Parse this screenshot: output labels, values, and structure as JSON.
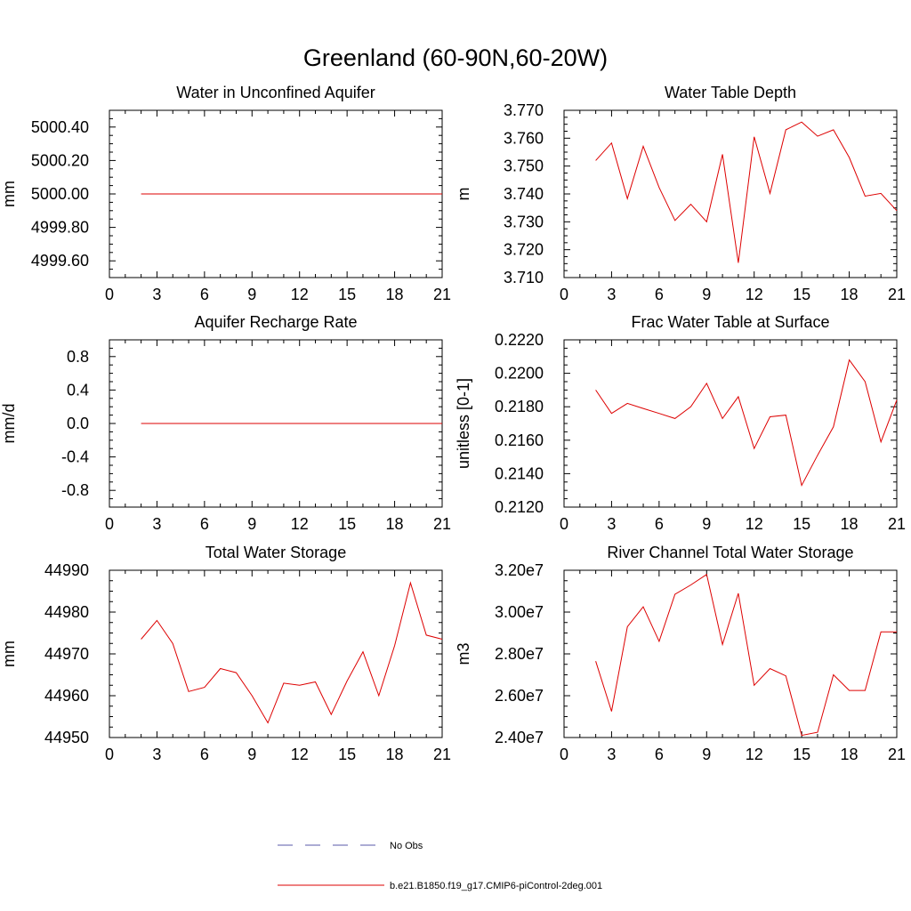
{
  "figure": {
    "title": "Greenland (60-90N,60-20W)"
  },
  "legend": {
    "entries": [
      {
        "label": "No Obs",
        "color": "#5a5aa8",
        "dash": true
      },
      {
        "label": "b.e21.B1850.f19_g17.CMIP6-piControl-2deg.001",
        "color": "#dd0000",
        "dash": false
      }
    ]
  },
  "chart_data": [
    {
      "type": "line",
      "title": "Water in Unconfined Aquifer",
      "ylabel": "mm",
      "xlim": [
        0,
        21
      ],
      "ylim": [
        4999.5,
        5000.5
      ],
      "xticks": [
        0,
        3,
        6,
        9,
        12,
        15,
        18,
        21
      ],
      "yticks": [
        4999.6,
        4999.8,
        5000.0,
        5000.2,
        5000.4
      ],
      "ytick_labels": [
        "4999.60",
        "4999.80",
        "5000.00",
        "5000.20",
        "5000.40"
      ],
      "series": [
        {
          "color": "#dd0000",
          "x": [
            2,
            3,
            4,
            5,
            6,
            7,
            8,
            9,
            10,
            11,
            12,
            13,
            14,
            15,
            16,
            17,
            18,
            19,
            20,
            21
          ],
          "y": [
            5000,
            5000,
            5000,
            5000,
            5000,
            5000,
            5000,
            5000,
            5000,
            5000,
            5000,
            5000,
            5000,
            5000,
            5000,
            5000,
            5000,
            5000,
            5000,
            5000
          ]
        }
      ]
    },
    {
      "type": "line",
      "title": "Water Table Depth",
      "ylabel": "m",
      "xlim": [
        0,
        21
      ],
      "ylim": [
        3.71,
        3.77
      ],
      "xticks": [
        0,
        3,
        6,
        9,
        12,
        15,
        18,
        21
      ],
      "yticks": [
        3.71,
        3.72,
        3.73,
        3.74,
        3.75,
        3.76,
        3.77
      ],
      "ytick_labels": [
        "3.710",
        "3.720",
        "3.730",
        "3.740",
        "3.750",
        "3.760",
        "3.770"
      ],
      "series": [
        {
          "color": "#dd0000",
          "x": [
            2,
            3,
            4,
            5,
            6,
            7,
            8,
            9,
            10,
            11,
            12,
            13,
            14,
            15,
            16,
            17,
            18,
            19,
            20,
            21
          ],
          "y": [
            3.752,
            3.7583,
            3.7383,
            3.7571,
            3.7423,
            3.7305,
            3.7363,
            3.73,
            3.7542,
            3.7153,
            3.7605,
            3.7402,
            3.763,
            3.7658,
            3.7607,
            3.763,
            3.7531,
            3.7392,
            3.7402,
            3.734
          ]
        }
      ]
    },
    {
      "type": "line",
      "title": "Aquifer Recharge Rate",
      "ylabel": "mm/d",
      "xlim": [
        0,
        21
      ],
      "ylim": [
        -1.0,
        1.0
      ],
      "xticks": [
        0,
        3,
        6,
        9,
        12,
        15,
        18,
        21
      ],
      "yticks": [
        -0.8,
        -0.4,
        0.0,
        0.4,
        0.8
      ],
      "ytick_labels": [
        "-0.8",
        "-0.4",
        "0.0",
        "0.4",
        "0.8"
      ],
      "series": [
        {
          "color": "#dd0000",
          "x": [
            2,
            3,
            4,
            5,
            6,
            7,
            8,
            9,
            10,
            11,
            12,
            13,
            14,
            15,
            16,
            17,
            18,
            19,
            20,
            21
          ],
          "y": [
            0,
            0,
            0,
            0,
            0,
            0,
            0,
            0,
            0,
            0,
            0,
            0,
            0,
            0,
            0,
            0,
            0,
            0,
            0,
            0
          ]
        }
      ]
    },
    {
      "type": "line",
      "title": "Frac Water Table at Surface",
      "ylabel": "unitless [0-1]",
      "xlim": [
        0,
        21
      ],
      "ylim": [
        0.212,
        0.222
      ],
      "xticks": [
        0,
        3,
        6,
        9,
        12,
        15,
        18,
        21
      ],
      "yticks": [
        0.212,
        0.214,
        0.216,
        0.218,
        0.22,
        0.222
      ],
      "ytick_labels": [
        "0.2120",
        "0.2140",
        "0.2160",
        "0.2180",
        "0.2200",
        "0.2220"
      ],
      "series": [
        {
          "color": "#dd0000",
          "x": [
            2,
            3,
            4,
            5,
            6,
            7,
            8,
            9,
            10,
            11,
            12,
            13,
            14,
            15,
            16,
            17,
            18,
            19,
            20,
            21
          ],
          "y": [
            0.219,
            0.2176,
            0.2182,
            0.2179,
            0.2176,
            0.2173,
            0.218,
            0.2194,
            0.2173,
            0.2186,
            0.2155,
            0.2174,
            0.2175,
            0.2133,
            0.2151,
            0.2168,
            0.2208,
            0.2195,
            0.2159,
            0.2184
          ]
        }
      ]
    },
    {
      "type": "line",
      "title": "Total Water Storage",
      "ylabel": "mm",
      "xlim": [
        0,
        21
      ],
      "ylim": [
        44950,
        44990
      ],
      "xticks": [
        0,
        3,
        6,
        9,
        12,
        15,
        18,
        21
      ],
      "yticks": [
        44950,
        44960,
        44970,
        44980,
        44990
      ],
      "ytick_labels": [
        "44950",
        "44960",
        "44970",
        "44980",
        "44990"
      ],
      "series": [
        {
          "color": "#dd0000",
          "x": [
            2,
            3,
            4,
            5,
            6,
            7,
            8,
            9,
            10,
            11,
            12,
            13,
            14,
            15,
            16,
            17,
            18,
            19,
            20,
            21
          ],
          "y": [
            44973.5,
            44978,
            44972.5,
            44961,
            44962,
            44966.5,
            44965.5,
            44960,
            44953.5,
            44963,
            44962.5,
            44963.3,
            44955.5,
            44963.5,
            44970.5,
            44960,
            44972,
            44987,
            44974.5,
            44973.5
          ]
        }
      ]
    },
    {
      "type": "line",
      "title": "River Channel Total Water Storage",
      "ylabel": "m3",
      "xlim": [
        0,
        21
      ],
      "ylim": [
        24000000,
        32000000
      ],
      "xticks": [
        0,
        3,
        6,
        9,
        12,
        15,
        18,
        21
      ],
      "yticks": [
        24000000,
        26000000,
        28000000,
        30000000,
        32000000
      ],
      "ytick_labels": [
        "2.40e7",
        "2.60e7",
        "2.80e7",
        "3.00e7",
        "3.20e7"
      ],
      "series": [
        {
          "color": "#dd0000",
          "x": [
            2,
            3,
            4,
            5,
            6,
            7,
            8,
            9,
            10,
            11,
            12,
            13,
            14,
            15,
            16,
            17,
            18,
            19,
            20,
            21
          ],
          "y": [
            27650000,
            25250000,
            29300000,
            30250000,
            28600000,
            30850000,
            31300000,
            31800000,
            28450000,
            30900000,
            26500000,
            27300000,
            26950000,
            24100000,
            24250000,
            27000000,
            26250000,
            26250000,
            29050000,
            29050000
          ]
        }
      ]
    }
  ]
}
